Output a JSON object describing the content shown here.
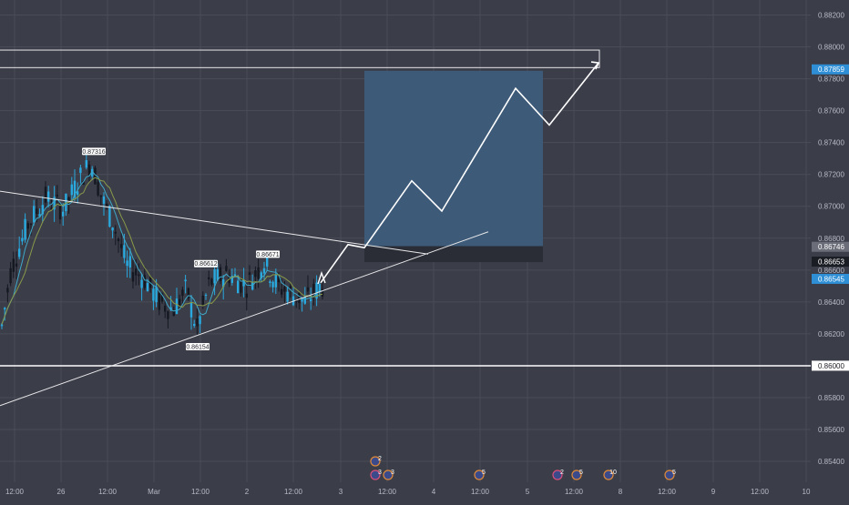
{
  "colors": {
    "background": "#3b3d49",
    "grid": "#4a4c58",
    "axis_text": "#b8bbc6",
    "candle_up": "#29a9de",
    "candle_down": "#141821",
    "ma_fast": "#3fa9c9",
    "ma_slow": "#8a9a4a",
    "trendline": "#e8e8ea",
    "target_zone": "#3d5a78",
    "stop_zone": "#2a2d36",
    "badge_blue": "#2e8fd6",
    "badge_gray": "#6b6e79",
    "badge_dark": "#1b1d24"
  },
  "chart_data": {
    "type": "candlestick",
    "title": "",
    "y_axis": {
      "ticks": [
        "0.88200",
        "0.88000",
        "0.87800",
        "0.87600",
        "0.87400",
        "0.87200",
        "0.87000",
        "0.86800",
        "0.86600",
        "0.86400",
        "0.86200",
        "0.86000",
        "0.85800",
        "0.85600",
        "0.85400"
      ],
      "range": [
        0.8532,
        0.8832
      ]
    },
    "x_axis": {
      "ticks": [
        "12:00",
        "26",
        "12:00",
        "Mar",
        "12:00",
        "2",
        "12:00",
        "3",
        "12:00",
        "4",
        "12:00",
        "5",
        "12:00",
        "8",
        "12:00",
        "9",
        "12:00",
        "10"
      ]
    },
    "price_badges": [
      {
        "value": "0.87859",
        "price": 0.87859,
        "style": "blue"
      },
      {
        "value": "0.86746",
        "price": 0.86746,
        "style": "gray"
      },
      {
        "value": "0.86653",
        "price": 0.86653,
        "style": "dark"
      },
      {
        "value": "0.86545",
        "price": 0.86545,
        "style": "blue"
      },
      {
        "value": "0.86000",
        "price": 0.86,
        "style": "white"
      }
    ],
    "pivot_labels": [
      {
        "text": "0.87316",
        "price": 0.87316
      },
      {
        "text": "0.86612",
        "price": 0.86612
      },
      {
        "text": "0.86671",
        "price": 0.86671
      },
      {
        "text": "0.86154",
        "price": 0.86154
      }
    ],
    "horizontal_level": 0.86,
    "resistance_zone": [
      0.8787,
      0.8798
    ],
    "target_box": {
      "low": 0.8675,
      "high": 0.8785
    },
    "stop_box": {
      "low": 0.8665,
      "high": 0.8675
    },
    "projection_path": [
      0.8652,
      0.8676,
      0.8674,
      0.8716,
      0.8697,
      0.8774,
      0.8751,
      0.879
    ],
    "event_markers": [
      "2",
      "3",
      "3",
      "5",
      "2",
      "5",
      "10",
      "5"
    ]
  }
}
